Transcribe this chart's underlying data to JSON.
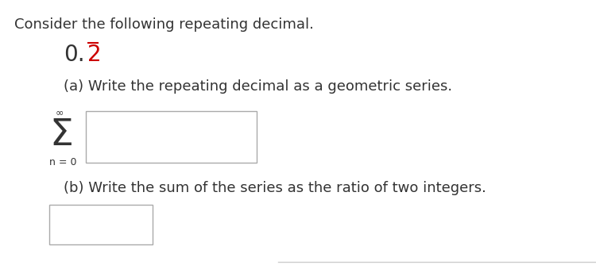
{
  "background_color": "#ffffff",
  "text_color": "#333333",
  "red_color": "#cc0000",
  "title_text": "Consider the following repeating decimal.",
  "decimal_black": "0.",
  "decimal_red": "2",
  "part_a_text": "(a) Write the repeating decimal as a geometric series.",
  "part_b_text": "(b) Write the sum of the series as the ratio of two integers.",
  "sigma_label": "Σ",
  "inf_label": "∞",
  "n_label": "n = 0",
  "font_size_main": 13.0,
  "font_size_decimal": 20,
  "font_size_sigma": 34,
  "font_size_inf": 9,
  "font_size_n": 9
}
